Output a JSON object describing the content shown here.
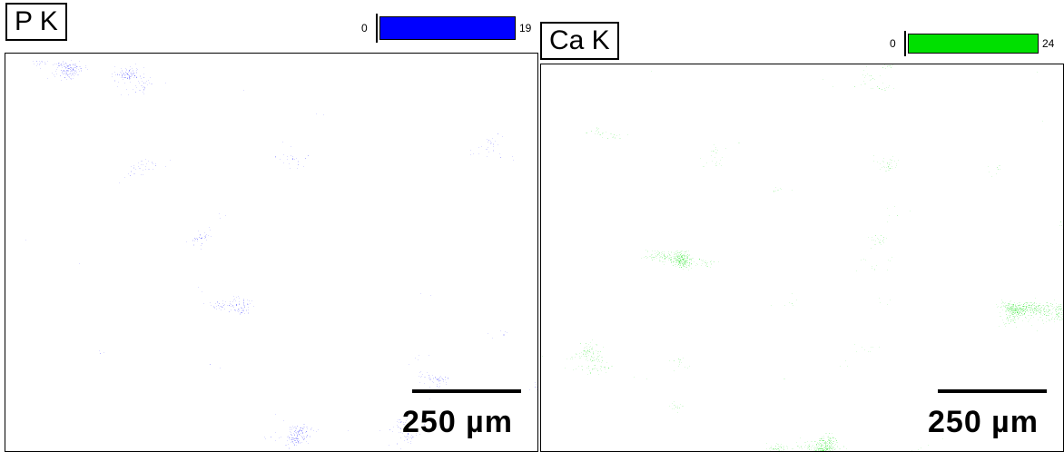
{
  "panels": [
    {
      "label": "P K",
      "color": "#0000ff",
      "colorbar": {
        "min": 0,
        "max": 19
      },
      "scale_bar": "250 µm"
    },
    {
      "label": "Ca K",
      "color": "#00e000",
      "colorbar": {
        "min": 0,
        "max": 24
      },
      "scale_bar": "250 µm"
    }
  ]
}
